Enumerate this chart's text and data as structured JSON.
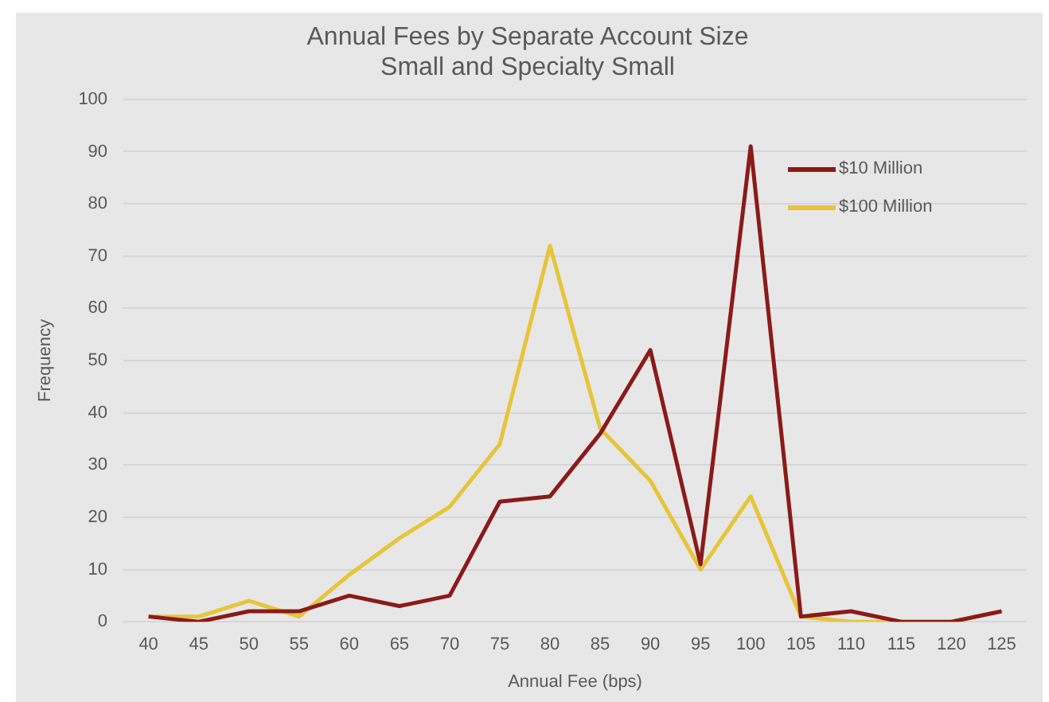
{
  "chart_data": {
    "type": "line",
    "title": "Annual Fees by Separate Account Size",
    "subtitle": "Small and Specialty Small",
    "xlabel": "Annual Fee (bps)",
    "ylabel": "Frequency",
    "categories": [
      "40",
      "45",
      "50",
      "55",
      "60",
      "65",
      "70",
      "75",
      "80",
      "85",
      "90",
      "95",
      "100",
      "105",
      "110",
      "115",
      "120",
      "125"
    ],
    "series": [
      {
        "name": "$10 Million",
        "color": "#8b1a1a",
        "values": [
          1,
          0,
          2,
          2,
          5,
          3,
          5,
          23,
          24,
          36,
          52,
          11,
          91,
          1,
          2,
          0,
          0,
          2
        ]
      },
      {
        "name": "$100 Million",
        "color": "#e6c53a",
        "values": [
          1,
          1,
          4,
          1,
          9,
          16,
          22,
          34,
          72,
          37,
          27,
          10,
          24,
          1,
          0,
          0,
          0,
          2
        ]
      }
    ],
    "ylim": [
      0,
      100
    ],
    "yticks": [
      0,
      10,
      20,
      30,
      40,
      50,
      60,
      70,
      80,
      90,
      100
    ],
    "grid": "y",
    "legend": "top right",
    "marker": "none"
  }
}
